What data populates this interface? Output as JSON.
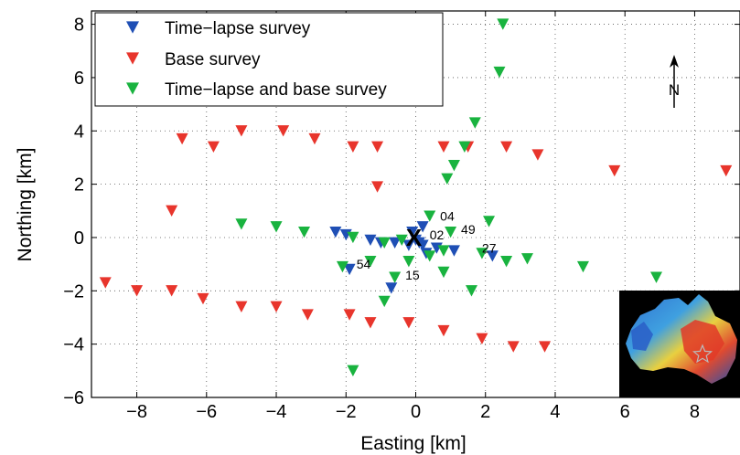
{
  "chart_data": {
    "type": "scatter",
    "xlabel": "Easting [km]",
    "ylabel": "Northing [km]",
    "xlim": [
      -9.3,
      9.3
    ],
    "ylim": [
      -6,
      8.5
    ],
    "xticks": [
      -8,
      -6,
      -4,
      -2,
      0,
      2,
      4,
      6,
      8
    ],
    "yticks": [
      -6,
      -4,
      -2,
      0,
      2,
      4,
      6,
      8
    ],
    "grid": true,
    "legend_position": "top-left",
    "marker": "downward-triangle",
    "series": [
      {
        "name": "Time−lapse survey",
        "color": "#1f4fb5",
        "points": [
          [
            -2.3,
            0.2
          ],
          [
            -2.0,
            0.1
          ],
          [
            -1.3,
            -0.1
          ],
          [
            -1.0,
            -0.2
          ],
          [
            -0.6,
            -0.2
          ],
          [
            -0.2,
            -0.3
          ],
          [
            0.2,
            -0.3
          ],
          [
            0.6,
            -0.4
          ],
          [
            0.1,
            -0.2
          ],
          [
            0.3,
            -0.6
          ],
          [
            1.1,
            -0.5
          ],
          [
            2.2,
            -0.7
          ],
          [
            0.2,
            0.4
          ],
          [
            -0.1,
            0.2
          ],
          [
            0.0,
            -0.1
          ],
          [
            -0.7,
            -1.9
          ],
          [
            -1.9,
            -1.2
          ]
        ]
      },
      {
        "name": "Base survey",
        "color": "#e8352c",
        "points": [
          [
            -6.7,
            3.7
          ],
          [
            -5.8,
            3.4
          ],
          [
            -5.0,
            4.0
          ],
          [
            -3.8,
            4.0
          ],
          [
            -2.9,
            3.7
          ],
          [
            -1.8,
            3.4
          ],
          [
            -1.1,
            3.4
          ],
          [
            -1.1,
            1.9
          ],
          [
            -7.0,
            1.0
          ],
          [
            -8.9,
            -1.7
          ],
          [
            -8.0,
            -2.0
          ],
          [
            -7.0,
            -2.0
          ],
          [
            -6.1,
            -2.3
          ],
          [
            -5.0,
            -2.6
          ],
          [
            -4.0,
            -2.6
          ],
          [
            -3.1,
            -2.9
          ],
          [
            -1.9,
            -2.9
          ],
          [
            -1.3,
            -3.2
          ],
          [
            -0.2,
            -3.2
          ],
          [
            0.8,
            -3.5
          ],
          [
            1.9,
            -3.8
          ],
          [
            2.8,
            -4.1
          ],
          [
            3.7,
            -4.1
          ],
          [
            0.8,
            3.4
          ],
          [
            1.5,
            3.4
          ],
          [
            2.6,
            3.4
          ],
          [
            3.5,
            3.1
          ],
          [
            5.7,
            2.5
          ],
          [
            8.9,
            2.5
          ]
        ]
      },
      {
        "name": "Time−lapse and base survey",
        "color": "#19b33f",
        "points": [
          [
            -5.0,
            0.5
          ],
          [
            -4.0,
            0.4
          ],
          [
            -3.2,
            0.2
          ],
          [
            -1.8,
            0.0
          ],
          [
            -0.9,
            -0.2
          ],
          [
            -0.4,
            -0.1
          ],
          [
            0.4,
            0.8
          ],
          [
            1.0,
            0.2
          ],
          [
            2.1,
            0.6
          ],
          [
            0.8,
            -0.5
          ],
          [
            0.4,
            -0.7
          ],
          [
            1.9,
            -0.6
          ],
          [
            2.6,
            -0.9
          ],
          [
            3.2,
            -0.8
          ],
          [
            4.8,
            -1.1
          ],
          [
            6.9,
            -1.5
          ],
          [
            1.6,
            -2.0
          ],
          [
            0.8,
            -1.3
          ],
          [
            -0.2,
            -0.9
          ],
          [
            -0.6,
            -1.5
          ],
          [
            -0.9,
            -2.4
          ],
          [
            -1.3,
            -0.9
          ],
          [
            -2.1,
            -1.1
          ],
          [
            -1.8,
            -5.0
          ],
          [
            0.9,
            2.2
          ],
          [
            1.1,
            2.7
          ],
          [
            1.4,
            3.4
          ],
          [
            1.7,
            4.3
          ],
          [
            2.4,
            6.2
          ],
          [
            2.5,
            8.0
          ]
        ]
      }
    ],
    "annotations": [
      {
        "text": "04",
        "x": 0.7,
        "y": 0.8
      },
      {
        "text": "02",
        "x": 0.4,
        "y": 0.1
      },
      {
        "text": "49",
        "x": 1.3,
        "y": 0.3
      },
      {
        "text": "27",
        "x": 1.9,
        "y": -0.4
      },
      {
        "text": "15",
        "x": -0.3,
        "y": -1.4
      },
      {
        "text": "54",
        "x": -1.7,
        "y": -1.0
      }
    ],
    "center_marker": {
      "text": "X",
      "x": -0.05,
      "y": 0.0
    },
    "north_arrow_label": "N"
  },
  "inset": {
    "name": "australia-map-inset"
  }
}
